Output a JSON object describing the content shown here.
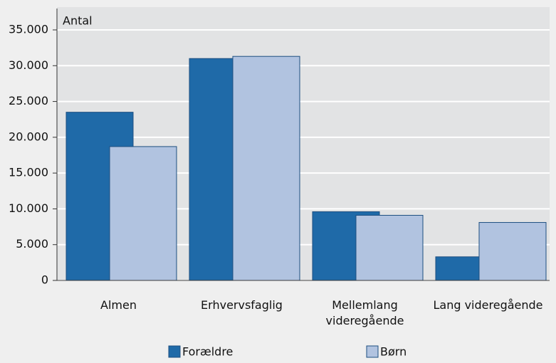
{
  "chart_data": {
    "type": "bar",
    "y_label": "Antal",
    "categories": [
      "Almen",
      "Erhvervsfaglig",
      "Mellemlang videregående",
      "Lang videregående"
    ],
    "series": [
      {
        "name": "Forældre",
        "color": "#1f6aa8",
        "values": [
          23500,
          31000,
          9600,
          3300
        ]
      },
      {
        "name": "Børn",
        "color": "#b1c3e0",
        "values": [
          18700,
          31300,
          9100,
          8100
        ]
      }
    ],
    "ylim": [
      0,
      35000
    ],
    "yticks": [
      0,
      {
        "value": 5000,
        "label": "5.000"
      },
      {
        "value": 10000,
        "label": "10.000"
      },
      {
        "value": 15000,
        "label": "15.000"
      },
      {
        "value": 20000,
        "label": "20.000"
      },
      {
        "value": 25000,
        "label": "25.000"
      },
      {
        "value": 30000,
        "label": "30.000"
      },
      {
        "value": 35000,
        "label": "35.000"
      }
    ],
    "grid": true
  }
}
